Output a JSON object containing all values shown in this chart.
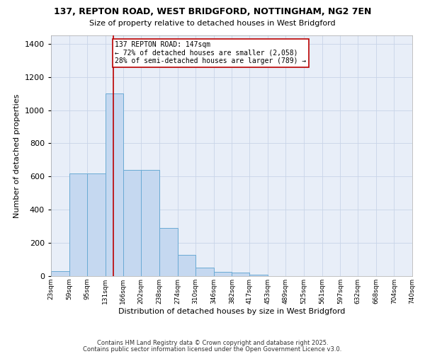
{
  "title1": "137, REPTON ROAD, WEST BRIDGFORD, NOTTINGHAM, NG2 7EN",
  "title2": "Size of property relative to detached houses in West Bridgford",
  "xlabel": "Distribution of detached houses by size in West Bridgford",
  "ylabel": "Number of detached properties",
  "bar_edges": [
    23,
    59,
    95,
    131,
    166,
    202,
    238,
    274,
    310,
    346,
    382,
    417,
    453,
    489,
    525,
    561,
    597,
    632,
    668,
    704,
    740
  ],
  "bar_heights": [
    30,
    620,
    620,
    1100,
    640,
    640,
    290,
    130,
    50,
    25,
    20,
    10,
    0,
    0,
    0,
    0,
    0,
    0,
    0,
    0
  ],
  "bar_color": "#c5d8f0",
  "bar_edge_color": "#6aaad4",
  "bar_linewidth": 0.7,
  "grid_color": "#c8d4e8",
  "background_color": "#e8eef8",
  "red_line_x": 147,
  "red_line_color": "#bb0000",
  "annotation_text": "137 REPTON ROAD: 147sqm\n← 72% of detached houses are smaller (2,058)\n28% of semi-detached houses are larger (789) →",
  "annotation_box_color": "#bb0000",
  "ylim": [
    0,
    1450
  ],
  "yticks": [
    0,
    200,
    400,
    600,
    800,
    1000,
    1200,
    1400
  ],
  "tick_labels": [
    "23sqm",
    "59sqm",
    "95sqm",
    "131sqm",
    "166sqm",
    "202sqm",
    "238sqm",
    "274sqm",
    "310sqm",
    "346sqm",
    "382sqm",
    "417sqm",
    "453sqm",
    "489sqm",
    "525sqm",
    "561sqm",
    "597sqm",
    "632sqm",
    "668sqm",
    "704sqm",
    "740sqm"
  ],
  "footer1": "Contains HM Land Registry data © Crown copyright and database right 2025.",
  "footer2": "Contains public sector information licensed under the Open Government Licence v3.0."
}
